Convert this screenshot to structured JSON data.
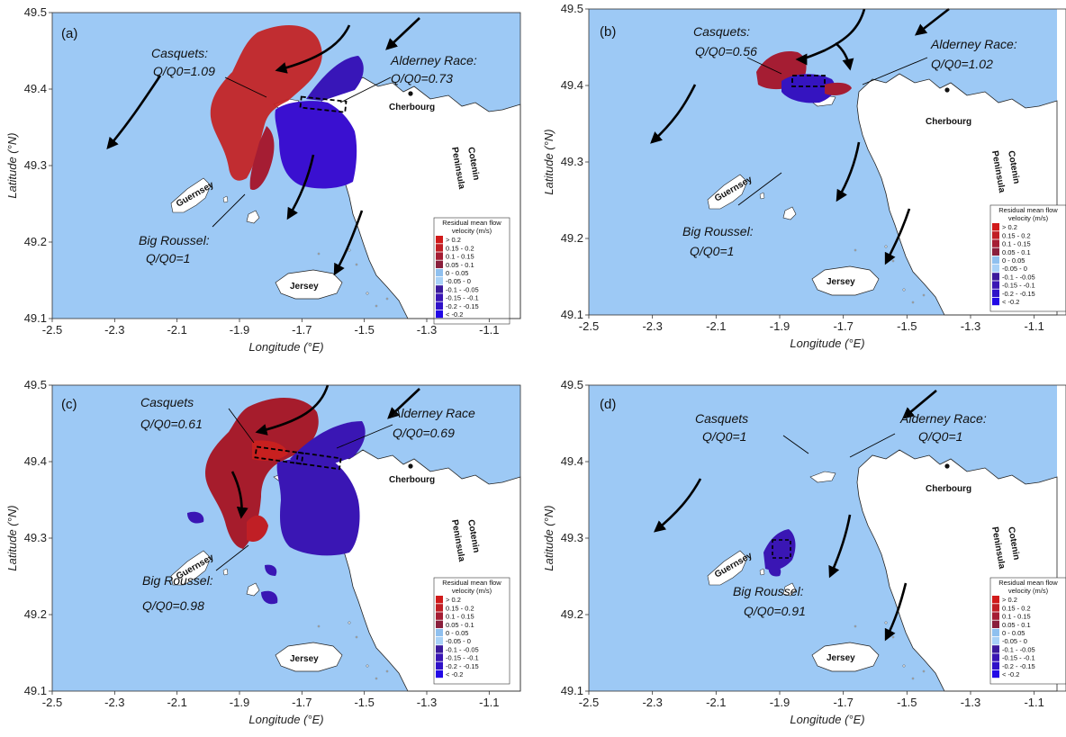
{
  "colors": {
    "sea": "#9dc9f5",
    "land": "#ffffff",
    "red_strong": "#c8201f",
    "red_mid": "#a61c2c",
    "blue_mid": "#3a19b6",
    "blue_strong": "#2f0ad6"
  },
  "axes": {
    "xlabel": "Longitude (°E)",
    "ylabel": "Latitude (°N)",
    "xticks": [
      "-2.5",
      "-2.3",
      "-2.1",
      "-1.9",
      "-1.7",
      "-1.5",
      "-1.3",
      "-1.1"
    ],
    "yticks": [
      "49.5",
      "49.4",
      "49.3",
      "49.2",
      "49.1"
    ]
  },
  "places": {
    "cherbourg": "Cherbourg",
    "cotentin": "Cotenin",
    "peninsula": "Peninsula",
    "guernsey": "Guernsey",
    "jersey": "Jersey"
  },
  "legend": {
    "title1": "Residual mean flow",
    "title2": "velocity (m/s)",
    "items": [
      {
        "label": "> 0.2",
        "color": "#d11a1a"
      },
      {
        "label": "0.15 - 0.2",
        "color": "#c01f25"
      },
      {
        "label": "0.1 - 0.15",
        "color": "#a51d33"
      },
      {
        "label": "0.05 - 0.1",
        "color": "#8a1f3c"
      },
      {
        "label": "0 - 0.05",
        "color": "#8fc0ef"
      },
      {
        "label": "-0.05 - 0",
        "color": "#a8d1f7"
      },
      {
        "label": "-0.1 - -0.05",
        "color": "#3b1a9c"
      },
      {
        "label": "-0.15 - -0.1",
        "color": "#3a16b4"
      },
      {
        "label": "-0.2 - -0.15",
        "color": "#3012c8"
      },
      {
        "label": "< -0.2",
        "color": "#2208e6"
      }
    ]
  },
  "panels": [
    {
      "label": "(a)",
      "casquets_name": "Casquets:",
      "casquets_q": "Q/Q0=1.09",
      "alderney_name": "Alderney Race:",
      "alderney_q": "Q/Q0=0.73",
      "roussel_name": "Big Roussel:",
      "roussel_q": "Q/Q0=1"
    },
    {
      "label": "(b)",
      "casquets_name": "Casquets:",
      "casquets_q": "Q/Q0=0.56",
      "alderney_name": "Alderney Race:",
      "alderney_q": "Q/Q0=1.02",
      "roussel_name": "Big Roussel:",
      "roussel_q": "Q/Q0=1"
    },
    {
      "label": "(c)",
      "casquets_name": "Casquets",
      "casquets_q": "Q/Q0=0.61",
      "alderney_name": "Alderney Race",
      "alderney_q": "Q/Q0=0.69",
      "roussel_name": "Big Roussel:",
      "roussel_q": "Q/Q0=0.98"
    },
    {
      "label": "(d)",
      "casquets_name": "Casquets",
      "casquets_q": "Q/Q0=1",
      "alderney_name": "Alderney Race:",
      "alderney_q": "Q/Q0=1",
      "roussel_name": "Big Roussel:",
      "roussel_q": "Q/Q0=0.91"
    }
  ]
}
